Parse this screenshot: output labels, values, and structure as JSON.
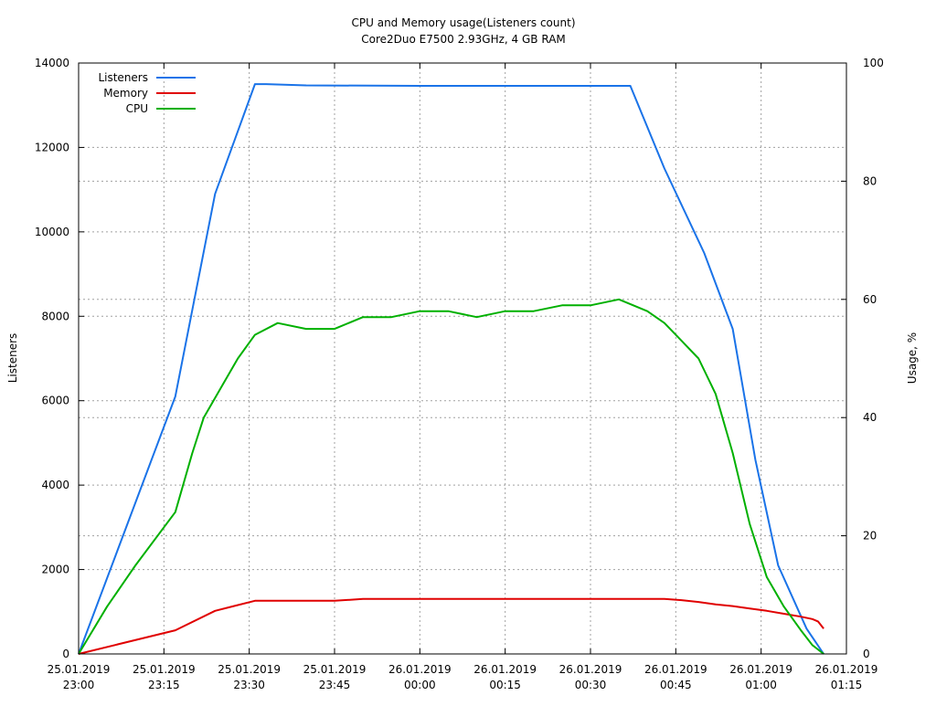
{
  "chart_data": {
    "type": "line",
    "title": "CPU and Memory usage(Listeners count)",
    "subtitle": "Core2Duo E7500 2.93GHz, 4 GB RAM",
    "ylabel": "Listeners",
    "y2label": "Usage, %",
    "xlim_minutes": [
      0,
      135
    ],
    "ylim": [
      0,
      14000
    ],
    "y2lim": [
      0,
      100
    ],
    "grid": true,
    "legend_position": "top-left",
    "x_ticks": [
      {
        "line1": "25.01.2019",
        "line2": "23:00"
      },
      {
        "line1": "25.01.2019",
        "line2": "23:15"
      },
      {
        "line1": "25.01.2019",
        "line2": "23:30"
      },
      {
        "line1": "25.01.2019",
        "line2": "23:45"
      },
      {
        "line1": "26.01.2019",
        "line2": "00:00"
      },
      {
        "line1": "26.01.2019",
        "line2": "00:15"
      },
      {
        "line1": "26.01.2019",
        "line2": "00:30"
      },
      {
        "line1": "26.01.2019",
        "line2": "00:45"
      },
      {
        "line1": "26.01.2019",
        "line2": "01:00"
      },
      {
        "line1": "26.01.2019",
        "line2": "01:15"
      }
    ],
    "y_ticks": [
      "0",
      "2000",
      "4000",
      "6000",
      "8000",
      "10000",
      "12000",
      "14000"
    ],
    "y2_ticks": [
      "0",
      "20",
      "40",
      "60",
      "80",
      "100"
    ],
    "series": [
      {
        "name": "Listeners",
        "axis": "left",
        "color": "#1a73e8",
        "x_minutes": [
          0,
          17,
          24,
          31,
          33,
          40,
          60,
          80,
          95,
          97,
          103,
          110,
          115,
          119,
          123,
          128,
          131
        ],
        "y": [
          0,
          6100,
          10900,
          13500,
          13500,
          13470,
          13460,
          13460,
          13460,
          13460,
          11500,
          9500,
          7700,
          4600,
          2100,
          600,
          0
        ]
      },
      {
        "name": "Memory",
        "axis": "right",
        "color": "#e00000",
        "x_minutes": [
          0,
          17,
          24,
          31,
          45,
          50,
          60,
          75,
          100,
          103,
          106,
          109,
          112,
          115,
          118,
          121,
          124,
          127,
          129,
          130,
          131
        ],
        "y": [
          0,
          4.0,
          7.3,
          9.0,
          9.0,
          9.3,
          9.3,
          9.3,
          9.3,
          9.3,
          9.1,
          8.8,
          8.4,
          8.1,
          7.7,
          7.3,
          6.8,
          6.3,
          5.9,
          5.5,
          4.3
        ]
      },
      {
        "name": "CPU",
        "axis": "right",
        "color": "#00b000",
        "x_minutes": [
          0,
          5,
          10,
          17,
          20,
          22,
          25,
          28,
          31,
          35,
          40,
          45,
          50,
          55,
          60,
          65,
          70,
          75,
          80,
          85,
          90,
          95,
          100,
          103,
          106,
          109,
          112,
          115,
          118,
          121,
          124,
          127,
          129,
          131
        ],
        "y": [
          0,
          8,
          15,
          24,
          34,
          40,
          45,
          50,
          54,
          56,
          55,
          55,
          57,
          57,
          58,
          58,
          57,
          58,
          58,
          59,
          59,
          60,
          58,
          56,
          53,
          50,
          44,
          34,
          22,
          13,
          8,
          4,
          1.5,
          0
        ]
      }
    ]
  }
}
